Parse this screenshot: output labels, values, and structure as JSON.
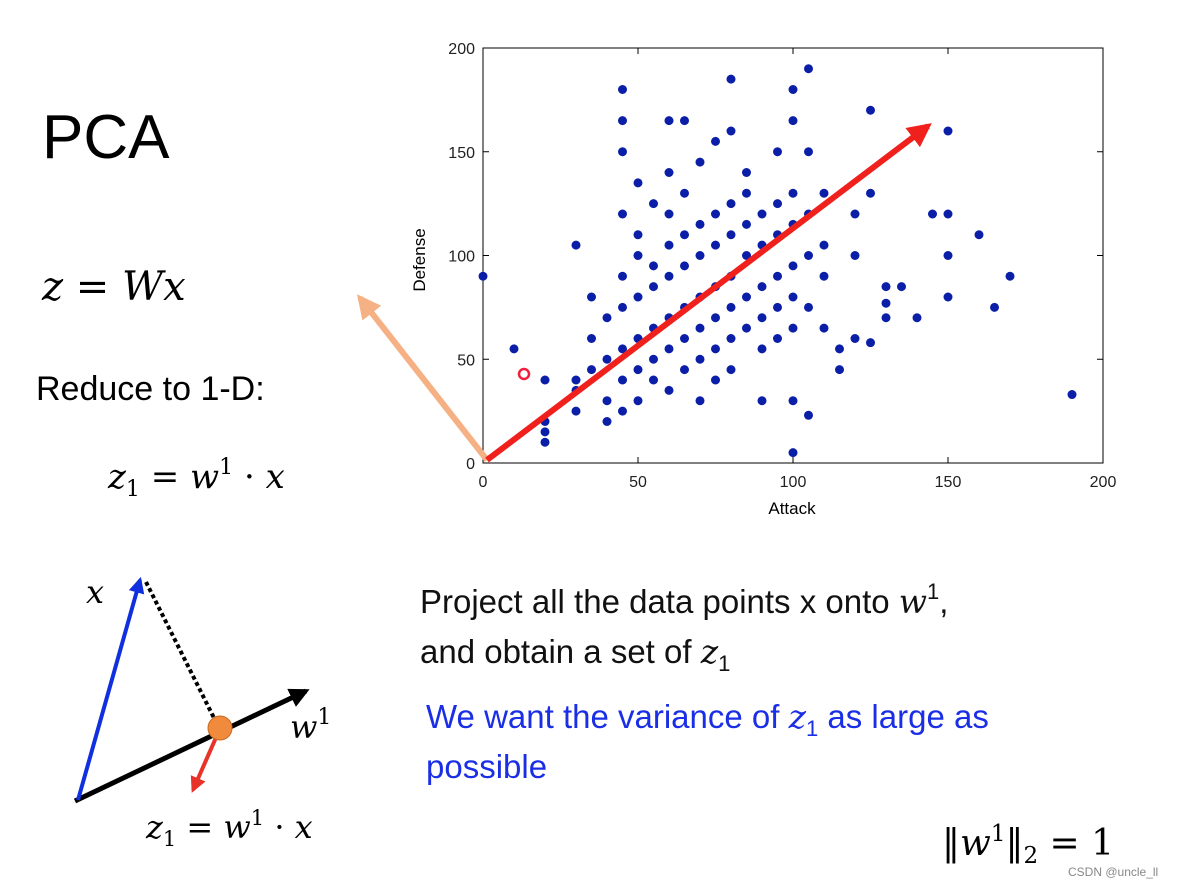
{
  "title": "PCA",
  "eq_main": "z = Wx",
  "reduce": "Reduce to 1-D:",
  "eq_reduce": [
    "z",
    "1",
    " = ",
    "w",
    "1",
    " · ",
    "x"
  ],
  "diagram": {
    "x_label": "x",
    "w_label": [
      "w",
      "1"
    ],
    "equation": [
      "z",
      "1",
      " = ",
      "w",
      "1",
      " · ",
      "x"
    ]
  },
  "project": {
    "line1": [
      "Project all the data points x onto ",
      "w",
      "1",
      ","
    ],
    "line2": [
      "and obtain a set of ",
      "z",
      "1"
    ]
  },
  "variance": {
    "line1": [
      "We want the variance of ",
      "z",
      "1",
      " as large as"
    ],
    "line2": "possible"
  },
  "norm": [
    "‖",
    "w",
    "1",
    "‖",
    "2",
    " = 1"
  ],
  "watermark": "CSDN @uncle_ll",
  "chart_data": {
    "type": "scatter",
    "x_label": "Attack",
    "y_label": "Defense",
    "color": "#0a1ea8",
    "xlim": [
      0,
      200
    ],
    "ylim": [
      0,
      200
    ],
    "xticks": [
      0,
      50,
      100,
      150,
      200
    ],
    "yticks": [
      0,
      50,
      100,
      150,
      200
    ],
    "x": [
      0,
      10,
      20,
      20,
      20,
      20,
      30,
      45,
      45,
      45,
      60,
      65,
      80,
      105,
      100,
      100,
      125,
      150,
      150,
      150,
      150,
      145,
      160,
      165,
      170,
      190,
      100,
      100,
      105,
      90,
      115,
      115,
      125,
      130,
      140,
      135,
      130,
      130,
      120,
      120,
      125,
      120,
      110,
      105,
      95,
      80,
      75,
      70,
      85,
      60,
      50,
      45,
      30,
      30,
      30,
      35,
      35,
      35,
      40,
      40,
      40,
      40,
      45,
      45,
      45,
      45,
      45,
      50,
      50,
      50,
      50,
      50,
      50,
      55,
      55,
      55,
      55,
      55,
      55,
      60,
      60,
      60,
      60,
      60,
      60,
      65,
      65,
      65,
      65,
      65,
      65,
      70,
      70,
      70,
      70,
      70,
      70,
      75,
      75,
      75,
      75,
      75,
      75,
      80,
      80,
      80,
      80,
      80,
      80,
      85,
      85,
      85,
      85,
      85,
      90,
      90,
      90,
      90,
      90,
      95,
      95,
      95,
      95,
      95,
      100,
      100,
      100,
      100,
      100,
      105,
      105,
      105,
      110,
      110,
      110
    ],
    "values": [
      90,
      55,
      40,
      10,
      15,
      20,
      105,
      180,
      165,
      150,
      165,
      165,
      185,
      190,
      180,
      165,
      170,
      160,
      120,
      100,
      80,
      120,
      110,
      75,
      90,
      33,
      5,
      30,
      23,
      30,
      45,
      55,
      58,
      70,
      70,
      85,
      85,
      77,
      60,
      100,
      130,
      120,
      130,
      150,
      150,
      160,
      155,
      145,
      140,
      140,
      135,
      120,
      40,
      35,
      25,
      45,
      80,
      60,
      30,
      50,
      70,
      20,
      40,
      55,
      75,
      90,
      25,
      45,
      60,
      80,
      100,
      30,
      110,
      50,
      65,
      85,
      40,
      95,
      125,
      55,
      70,
      90,
      105,
      35,
      120,
      60,
      75,
      95,
      45,
      110,
      130,
      65,
      80,
      100,
      50,
      115,
      30,
      70,
      85,
      105,
      55,
      120,
      40,
      75,
      90,
      110,
      60,
      125,
      45,
      80,
      100,
      115,
      65,
      130,
      85,
      105,
      120,
      70,
      55,
      90,
      110,
      125,
      75,
      60,
      95,
      115,
      130,
      80,
      65,
      100,
      120,
      75,
      90,
      105,
      65
    ]
  }
}
